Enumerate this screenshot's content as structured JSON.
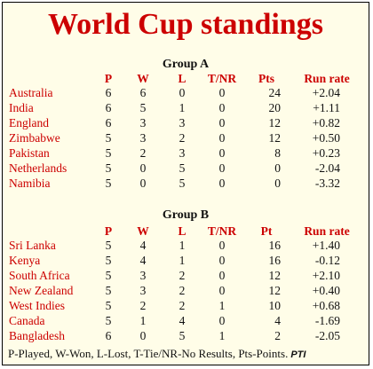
{
  "title": "World Cup standings",
  "group_a": {
    "title": "Group A",
    "headers": [
      "P",
      "W",
      "L",
      "T/NR",
      "Pts",
      "Run rate"
    ],
    "rows": [
      {
        "team": "Australia",
        "p": "6",
        "w": "6",
        "l": "0",
        "t": "0",
        "pts": "24",
        "rr": "+2.04"
      },
      {
        "team": "India",
        "p": "6",
        "w": "5",
        "l": "1",
        "t": "0",
        "pts": "20",
        "rr": "+1.11"
      },
      {
        "team": "England",
        "p": "6",
        "w": "3",
        "l": "3",
        "t": "0",
        "pts": "12",
        "rr": "+0.82"
      },
      {
        "team": "Zimbabwe",
        "p": "5",
        "w": "3",
        "l": "2",
        "t": "0",
        "pts": "12",
        "rr": "+0.50"
      },
      {
        "team": "Pakistan",
        "p": "5",
        "w": "2",
        "l": "3",
        "t": "0",
        "pts": "8",
        "rr": "+0.23"
      },
      {
        "team": "Netherlands",
        "p": "5",
        "w": "0",
        "l": "5",
        "t": "0",
        "pts": "0",
        "rr": "-2.04"
      },
      {
        "team": "Namibia",
        "p": "5",
        "w": "0",
        "l": "5",
        "t": "0",
        "pts": "0",
        "rr": "-3.32"
      }
    ]
  },
  "group_b": {
    "title": "Group B",
    "headers": [
      "P",
      "W",
      "L",
      "T/NR",
      "Pt",
      "Run rate"
    ],
    "rows": [
      {
        "team": "Sri Lanka",
        "p": "5",
        "w": "4",
        "l": "1",
        "t": "0",
        "pts": "16",
        "rr": "+1.40"
      },
      {
        "team": "Kenya",
        "p": "5",
        "w": "4",
        "l": "1",
        "t": "0",
        "pts": "16",
        "rr": "-0.12"
      },
      {
        "team": "South Africa",
        "p": "5",
        "w": "3",
        "l": "2",
        "t": "0",
        "pts": "12",
        "rr": "+2.10"
      },
      {
        "team": "New Zealand",
        "p": "5",
        "w": "3",
        "l": "2",
        "t": "0",
        "pts": "12",
        "rr": "+0.40"
      },
      {
        "team": "West Indies",
        "p": "5",
        "w": "2",
        "l": "2",
        "t": "1",
        "pts": "10",
        "rr": "+0.68"
      },
      {
        "team": "Canada",
        "p": "5",
        "w": "1",
        "l": "4",
        "t": "0",
        "pts": "4",
        "rr": "-1.69"
      },
      {
        "team": "Bangladesh",
        "p": "6",
        "w": "0",
        "l": "5",
        "t": "1",
        "pts": "2",
        "rr": "-2.05"
      }
    ]
  },
  "footer": {
    "legend": "P-Played, W-Won, L-Lost, T-Tie/NR-No Results, Pts-Points.",
    "credit": "PTI"
  },
  "colors": {
    "accent": "#cc0000",
    "background": "#fffde8"
  }
}
